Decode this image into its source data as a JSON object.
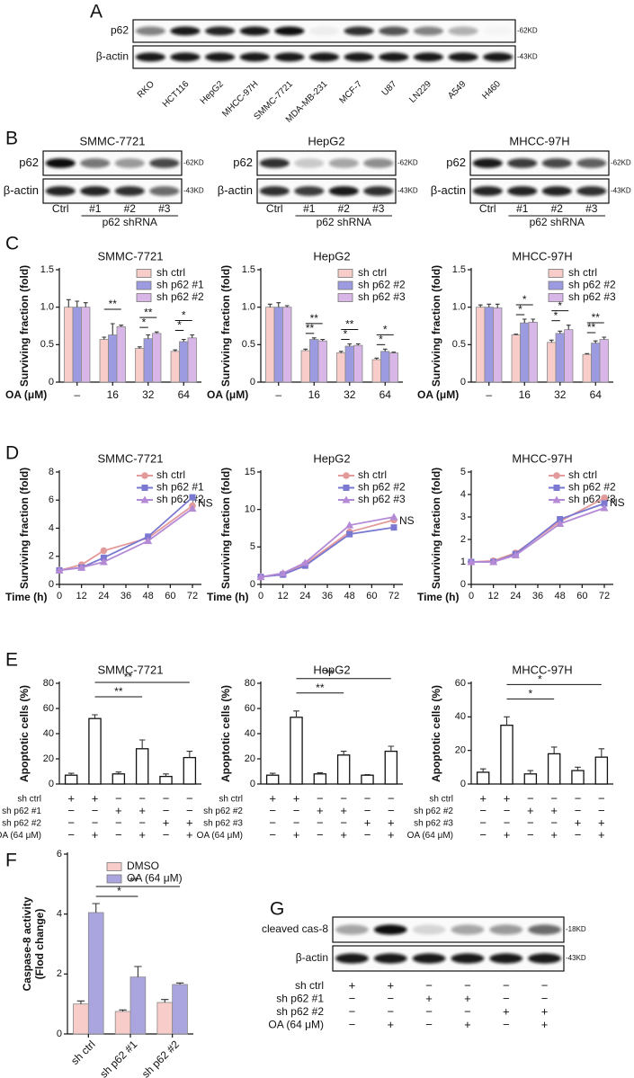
{
  "panel_labels": [
    "A",
    "B",
    "C",
    "D",
    "E",
    "F",
    "G"
  ],
  "blots": {
    "A": {
      "rows": [
        "p62",
        "β-actin"
      ],
      "sizes": [
        "-62KD",
        "-43KD"
      ],
      "lanes": [
        "RKO",
        "HCT116",
        "HepG2",
        "MHCC-97H",
        "SMMC-7721",
        "MDA-MB-231",
        "MCF-7",
        "U87",
        "LN229",
        "A549",
        "H460"
      ]
    },
    "B": [
      {
        "title": "SMMC-7721",
        "rows": [
          "p62",
          "β-actin"
        ],
        "sizes": [
          "-62KD",
          "-43KD"
        ],
        "lanes": [
          "Ctrl",
          "#1",
          "#2",
          "#3"
        ],
        "group": "p62 shRNA"
      },
      {
        "title": "HepG2",
        "rows": [
          "p62",
          "β-actin"
        ],
        "sizes": [
          "-62KD",
          "-43KD"
        ],
        "lanes": [
          "Ctrl",
          "#1",
          "#2",
          "#3"
        ],
        "group": "p62 shRNA"
      },
      {
        "title": "MHCC-97H",
        "rows": [
          "p62",
          "β-actin"
        ],
        "sizes": [
          "-62KD",
          "-43KD"
        ],
        "lanes": [
          "Ctrl",
          "#1",
          "#2",
          "#3"
        ],
        "group": "p62 shRNA"
      }
    ],
    "G": {
      "rows": [
        "cleaved cas-8",
        "β-actin"
      ],
      "sizes": [
        "-18KD",
        "-43KD"
      ],
      "conditions": {
        "labels": [
          "sh ctrl",
          "sh p62 #1",
          "sh p62 #2",
          "OA (64 μM)"
        ],
        "marks": [
          [
            "+",
            "+",
            "−",
            "−",
            "−",
            "−"
          ],
          [
            "−",
            "−",
            "+",
            "+",
            "−",
            "−"
          ],
          [
            "−",
            "−",
            "−",
            "−",
            "+",
            "+"
          ],
          [
            "−",
            "+",
            "−",
            "+",
            "−",
            "+"
          ]
        ]
      }
    }
  },
  "chart_data": [
    {
      "type": "bar",
      "title": "SMMC-7721",
      "ylabel": "Surviving fraction (fold)",
      "xlabel": "OA (μM)",
      "categories": [
        "–",
        "16",
        "32",
        "64"
      ],
      "series": [
        {
          "name": "sh ctrl",
          "color": "#f8cdc9",
          "values": [
            1.0,
            0.57,
            0.45,
            0.41
          ],
          "errors": [
            0.1,
            0.03,
            0.02,
            0.02
          ]
        },
        {
          "name": "sh p62 #1",
          "color": "#9c9ae0",
          "values": [
            1.0,
            0.63,
            0.58,
            0.54
          ],
          "errors": [
            0.08,
            0.15,
            0.05,
            0.03
          ]
        },
        {
          "name": "sh p62 #2",
          "color": "#d8b6e8",
          "values": [
            1.0,
            0.74,
            0.65,
            0.59
          ],
          "errors": [
            0.06,
            0.02,
            0.02,
            0.04
          ]
        }
      ],
      "ylim": [
        0,
        1.5
      ],
      "yticks": [
        0,
        0.5,
        {
          "value": 1,
          "label": "1.0"
        },
        1.5
      ],
      "annotations": [
        "**",
        "**",
        "*",
        "*",
        "*"
      ]
    },
    {
      "type": "bar",
      "title": "HepG2",
      "ylabel": "Surviving fraction (fold)",
      "xlabel": "OA (μM)",
      "categories": [
        "–",
        "16",
        "32",
        "64"
      ],
      "series": [
        {
          "name": "sh ctrl",
          "color": "#f8cdc9",
          "values": [
            1.0,
            0.42,
            0.39,
            0.3
          ],
          "errors": [
            0.04,
            0.02,
            0.02,
            0.02
          ]
        },
        {
          "name": "sh p62 #2",
          "color": "#9c9ae0",
          "values": [
            1.0,
            0.57,
            0.48,
            0.41
          ],
          "errors": [
            0.06,
            0.02,
            0.03,
            0.03
          ]
        },
        {
          "name": "sh p62 #3",
          "color": "#d8b6e8",
          "values": [
            1.0,
            0.55,
            0.49,
            0.39
          ],
          "errors": [
            0.02,
            0.02,
            0.02,
            0.01
          ]
        }
      ],
      "ylim": [
        0,
        1.5
      ],
      "yticks": [
        0,
        0.5,
        {
          "value": 1,
          "label": "1.0"
        },
        1.5
      ],
      "annotations": [
        "**",
        "**",
        "**",
        "*",
        "*",
        "*"
      ]
    },
    {
      "type": "bar",
      "title": "MHCC-97H",
      "ylabel": "Surviving fraction (fold)",
      "xlabel": "OA (μM)",
      "categories": [
        "–",
        "16",
        "32",
        "64"
      ],
      "series": [
        {
          "name": "sh ctrl",
          "color": "#f8cdc9",
          "values": [
            1.0,
            0.63,
            0.53,
            0.37
          ],
          "errors": [
            0.03,
            0.01,
            0.03,
            0.01
          ]
        },
        {
          "name": "sh p62 #2",
          "color": "#9c9ae0",
          "values": [
            1.0,
            0.79,
            0.65,
            0.52
          ],
          "errors": [
            0.04,
            0.05,
            0.03,
            0.03
          ]
        },
        {
          "name": "sh p62 #3",
          "color": "#d8b6e8",
          "values": [
            0.99,
            0.8,
            0.7,
            0.57
          ],
          "errors": [
            0.05,
            0.04,
            0.06,
            0.03
          ]
        }
      ],
      "ylim": [
        0,
        1.5
      ],
      "yticks": [
        0,
        0.5,
        {
          "value": 1,
          "label": "1.0"
        },
        1.5
      ],
      "annotations": [
        "*",
        "*",
        "*",
        "*",
        "**",
        "**"
      ]
    },
    {
      "type": "line",
      "title": "SMMC-7721",
      "ylabel": "Surviving fraction (fold)",
      "xlabel": "Time (h)",
      "x": [
        0,
        12,
        24,
        48,
        72
      ],
      "xlim": [
        0,
        72
      ],
      "xticks": [
        0,
        12,
        24,
        36,
        48,
        60,
        72
      ],
      "series": [
        {
          "name": "sh ctrl",
          "color": "#e39a9a",
          "marker": "circle",
          "values": [
            1,
            1.4,
            2.4,
            3.3,
            5.6
          ]
        },
        {
          "name": "sh p62 #1",
          "color": "#7a78d0",
          "marker": "square",
          "values": [
            1,
            1.2,
            1.9,
            3.4,
            6.2
          ]
        },
        {
          "name": "sh p62 #2",
          "color": "#b48ad6",
          "marker": "triangle",
          "values": [
            1,
            1.2,
            1.6,
            3.1,
            5.4
          ]
        }
      ],
      "ylim": [
        0,
        8
      ],
      "yticks": [
        0,
        2,
        4,
        6,
        8
      ],
      "annotations": [
        "NS"
      ]
    },
    {
      "type": "line",
      "title": "HepG2",
      "ylabel": "Surviving fraction (fold)",
      "xlabel": "Time (h)",
      "x": [
        0,
        12,
        24,
        48,
        72
      ],
      "xlim": [
        0,
        72
      ],
      "xticks": [
        0,
        12,
        24,
        36,
        48,
        60,
        72
      ],
      "series": [
        {
          "name": "sh ctrl",
          "color": "#e39a9a",
          "marker": "circle",
          "values": [
            1,
            1.4,
            2.7,
            7.0,
            8.6
          ]
        },
        {
          "name": "sh p62 #2",
          "color": "#7a78d0",
          "marker": "square",
          "values": [
            1,
            1.3,
            2.5,
            6.7,
            7.6
          ]
        },
        {
          "name": "sh p62 #3",
          "color": "#b48ad6",
          "marker": "triangle",
          "values": [
            1,
            1.5,
            2.9,
            7.9,
            9.0
          ]
        }
      ],
      "ylim": [
        0,
        15
      ],
      "yticks": [
        0,
        5,
        10,
        15
      ],
      "annotations": [
        "NS"
      ]
    },
    {
      "type": "line",
      "title": "MHCC-97H",
      "ylabel": "Surviving fraction (fold)",
      "xlabel": "Time (h)",
      "x": [
        0,
        12,
        24,
        48,
        72
      ],
      "xlim": [
        0,
        72
      ],
      "xticks": [
        0,
        12,
        24,
        36,
        48,
        60,
        72
      ],
      "series": [
        {
          "name": "sh ctrl",
          "color": "#e39a9a",
          "marker": "circle",
          "values": [
            1,
            1.05,
            1.4,
            2.8,
            3.85
          ]
        },
        {
          "name": "sh p62 #2",
          "color": "#7a78d0",
          "marker": "square",
          "values": [
            1,
            1.0,
            1.35,
            2.9,
            3.6
          ]
        },
        {
          "name": "sh p62 #3",
          "color": "#b48ad6",
          "marker": "triangle",
          "values": [
            1,
            1.0,
            1.3,
            2.7,
            3.4
          ]
        }
      ],
      "ylim": [
        0,
        5
      ],
      "yticks": [
        0,
        1,
        2,
        3,
        4,
        5
      ],
      "annotations": [
        "NS"
      ]
    },
    {
      "type": "bar",
      "title": "SMMC-7721",
      "ylabel": "Apoptotic cells (%)",
      "color": "#ffffff",
      "values": [
        7,
        52,
        8,
        28,
        6,
        21
      ],
      "errors": [
        1.5,
        3,
        1.5,
        7,
        2,
        5
      ],
      "ylim": [
        0,
        80
      ],
      "yticks": [
        0,
        20,
        40,
        60,
        80
      ],
      "conditions": {
        "labels": [
          "sh ctrl",
          "sh p62 #1",
          "sh p62 #2",
          "OA (64 μM)"
        ],
        "marks": [
          [
            "+",
            "+",
            "−",
            "−",
            "−",
            "−"
          ],
          [
            "−",
            "−",
            "+",
            "+",
            "−",
            "−"
          ],
          [
            "−",
            "−",
            "−",
            "−",
            "+",
            "+"
          ],
          [
            "−",
            "+",
            "−",
            "+",
            "−",
            "+"
          ]
        ]
      },
      "annotations": [
        "**",
        "**"
      ]
    },
    {
      "type": "bar",
      "title": "HepG2",
      "ylabel": "Apoptotic cells (%)",
      "color": "#ffffff",
      "values": [
        7,
        53,
        8,
        23,
        7,
        26
      ],
      "errors": [
        1.5,
        5,
        1,
        3,
        0.5,
        4
      ],
      "ylim": [
        0,
        80
      ],
      "yticks": [
        0,
        20,
        40,
        60,
        80
      ],
      "conditions": {
        "labels": [
          "sh ctrl",
          "sh p62 #2",
          "sh p62 #3",
          "OA (64 μM)"
        ],
        "marks": [
          [
            "+",
            "+",
            "−",
            "−",
            "−",
            "−"
          ],
          [
            "−",
            "−",
            "+",
            "+",
            "−",
            "−"
          ],
          [
            "−",
            "−",
            "−",
            "−",
            "+",
            "+"
          ],
          [
            "−",
            "+",
            "−",
            "+",
            "−",
            "+"
          ]
        ]
      },
      "annotations": [
        "**",
        "**"
      ]
    },
    {
      "type": "bar",
      "title": "MHCC-97H",
      "ylabel": "Apoptotic cells (%)",
      "color": "#ffffff",
      "values": [
        7,
        35,
        6,
        18,
        8,
        16
      ],
      "errors": [
        2,
        5,
        2,
        4,
        2,
        5
      ],
      "ylim": [
        0,
        60
      ],
      "yticks": [
        0,
        20,
        40,
        60
      ],
      "conditions": {
        "labels": [
          "sh ctrl",
          "sh p62 #2",
          "sh p62 #3",
          "OA (64 μM)"
        ],
        "marks": [
          [
            "+",
            "+",
            "−",
            "−",
            "−",
            "−"
          ],
          [
            "−",
            "−",
            "+",
            "+",
            "−",
            "−"
          ],
          [
            "−",
            "−",
            "−",
            "−",
            "+",
            "+"
          ],
          [
            "−",
            "+",
            "−",
            "+",
            "−",
            "+"
          ]
        ]
      },
      "annotations": [
        "*",
        "*"
      ]
    },
    {
      "type": "bar",
      "ylabel": [
        "Caspase-8 activity",
        "(Flod change)"
      ],
      "categories": [
        "sh ctrl",
        "sh p62 #1",
        "sh p62 #2"
      ],
      "series": [
        {
          "name": "DMSO",
          "color": "#f8cdc9",
          "values": [
            1.0,
            0.75,
            1.05
          ],
          "errors": [
            0.1,
            0.05,
            0.1
          ]
        },
        {
          "name": "OA (64 μM)",
          "color": "#aaa5de",
          "values": [
            4.05,
            1.9,
            1.65
          ],
          "errors": [
            0.3,
            0.35,
            0.05
          ]
        }
      ],
      "ylim": [
        0,
        6
      ],
      "yticks": [
        0,
        2,
        4,
        6
      ],
      "annotations": [
        "*",
        "**"
      ]
    }
  ]
}
